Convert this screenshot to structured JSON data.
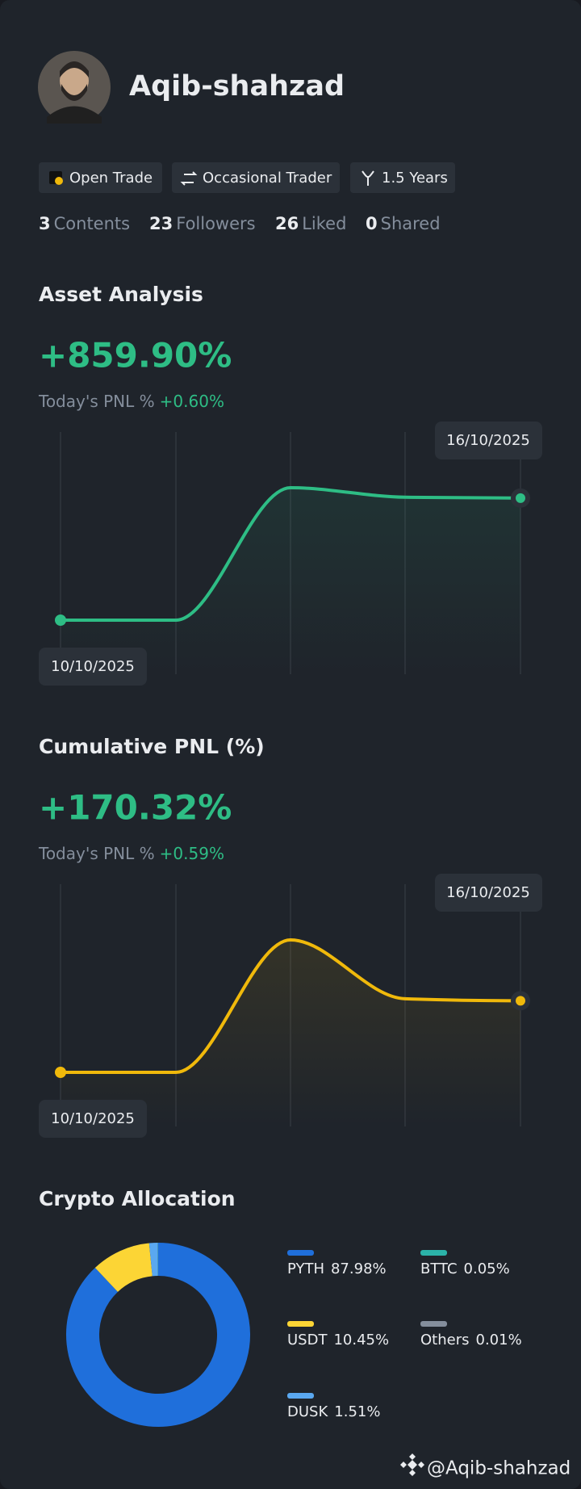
{
  "profile": {
    "name": "Aqib-shahzad",
    "badges": [
      "Open Trade",
      "Occasional Trader",
      "1.5 Years"
    ],
    "stats": [
      {
        "value": 3,
        "label": "Contents"
      },
      {
        "value": 23,
        "label": "Followers"
      },
      {
        "value": 26,
        "label": "Liked"
      },
      {
        "value": 0,
        "label": "Shared"
      }
    ]
  },
  "chart_data": [
    {
      "type": "line",
      "title": "Asset Analysis",
      "headline": "+859.90%",
      "subtitle": "Today's PNL %",
      "change": "+0.60%",
      "x": [
        "10/10/2025",
        null,
        null,
        null,
        "16/10/2025"
      ],
      "series": [
        {
          "color": "#2ebd85",
          "values": [
            0,
            0,
            933,
            866,
            859.9
          ]
        }
      ]
    },
    {
      "type": "line",
      "title": "Cumulative PNL (%)",
      "headline": "+170.32%",
      "subtitle": "Today's PNL %",
      "change": "+0.59%",
      "x": [
        "10/10/2025",
        null,
        null,
        null,
        "16/10/2025"
      ],
      "series": [
        {
          "color": "#f0b90b",
          "values": [
            0,
            0,
            315,
            175,
            170.32
          ]
        }
      ]
    },
    {
      "type": "pie",
      "title": "Crypto Allocation",
      "categories": [
        "PYTH",
        "USDT",
        "DUSK",
        "BTTC",
        "Others"
      ],
      "values": [
        87.98,
        10.45,
        1.51,
        0.05,
        0.01
      ],
      "value_labels": [
        "87.98%",
        "10.45%",
        "1.51%",
        "0.05%",
        "0.01%"
      ],
      "colors": [
        "#1f6fdb",
        "#fcd535",
        "#5aa8f0",
        "#2bb3a9",
        "#848e9c"
      ]
    }
  ],
  "footer": "@Aqib-shahzad"
}
